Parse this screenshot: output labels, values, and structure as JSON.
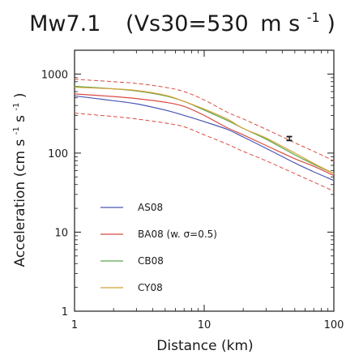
{
  "chart_data": {
    "type": "line",
    "title_main": "Mw7.1",
    "title_params": "(Vs30=530",
    "title_units": "m s",
    "title_exp": "-1",
    "title_close": ")",
    "xlabel": "Distance (km)",
    "ylabel_text": "Acceleration (cm s",
    "ylabel_exp1": "-1",
    "ylabel_mid": " s",
    "ylabel_exp2": "-1",
    "ylabel_close": ")",
    "x_scale": "log",
    "y_scale": "log",
    "xlim": [
      1,
      100
    ],
    "ylim": [
      1,
      2000
    ],
    "x_ticks": [
      1,
      10,
      100
    ],
    "x_tick_labels": [
      "1",
      "10",
      "100"
    ],
    "y_ticks": [
      1,
      10,
      100,
      1000
    ],
    "y_tick_labels": [
      "1",
      "10",
      "100",
      "1000"
    ],
    "grid": false,
    "legend_position": "lower-left",
    "x": [
      1,
      2,
      3,
      5,
      7,
      10,
      15,
      20,
      30,
      50,
      70,
      100
    ],
    "series": [
      {
        "name": "AS08",
        "color": "#4a56b4",
        "style": "solid",
        "y": [
          530,
          460,
          420,
          350,
          300,
          250,
          200,
          160,
          115,
          75,
          58,
          45
        ]
      },
      {
        "name": "BA08 (w. σ=0.5)",
        "color": "#d94b43",
        "style": "solid",
        "y": [
          560,
          520,
          490,
          440,
          390,
          300,
          210,
          170,
          125,
          85,
          68,
          52
        ]
      },
      {
        "name": "CB08",
        "color": "#5aa84a",
        "style": "solid",
        "y": [
          700,
          650,
          610,
          530,
          450,
          350,
          260,
          205,
          150,
          95,
          72,
          55
        ]
      },
      {
        "name": "CY08",
        "color": "#d6a13a",
        "style": "solid",
        "y": [
          680,
          650,
          620,
          540,
          450,
          360,
          270,
          205,
          155,
          100,
          74,
          55
        ]
      }
    ],
    "bounds": {
      "color": "#d94b43",
      "style": "dashed",
      "upper": [
        860,
        800,
        760,
        680,
        600,
        470,
        330,
        270,
        200,
        135,
        105,
        80
      ],
      "lower": [
        320,
        290,
        270,
        240,
        215,
        170,
        130,
        105,
        80,
        55,
        43,
        33
      ]
    },
    "observation": {
      "label": "H",
      "x": 43,
      "y": 153
    }
  }
}
